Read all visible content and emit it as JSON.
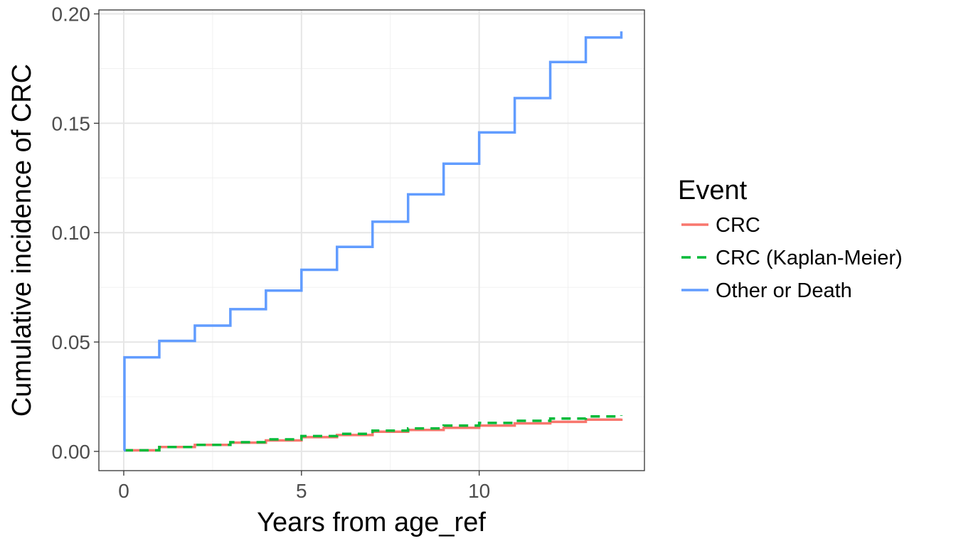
{
  "chart_data": {
    "type": "line",
    "step": true,
    "xlabel": "Years from age_ref",
    "ylabel": "Cumulative incidence of CRC",
    "xlim": [
      -0.7,
      14.65
    ],
    "ylim": [
      -0.0088,
      0.2018
    ],
    "x_ticks": [
      0,
      5,
      10
    ],
    "x_tick_labels": [
      "0",
      "5",
      "10"
    ],
    "y_ticks": [
      0,
      0.05,
      0.1,
      0.15,
      0.2
    ],
    "y_tick_labels": [
      "0.00",
      "0.05",
      "0.10",
      "0.15",
      "0.20"
    ],
    "grid": true,
    "legend": {
      "title": "Event",
      "position": "right"
    },
    "series": [
      {
        "name": "CRC",
        "color": "#F8766D",
        "style": "solid",
        "x": [
          0,
          1,
          2,
          3,
          4,
          5,
          6,
          7,
          8,
          9,
          10,
          11,
          12,
          13,
          14
        ],
        "y": [
          0.0005,
          0.002,
          0.003,
          0.004,
          0.005,
          0.0065,
          0.0075,
          0.009,
          0.0098,
          0.0108,
          0.0118,
          0.0128,
          0.0135,
          0.0145,
          0.015
        ]
      },
      {
        "name": "CRC (Kaplan-Meier)",
        "color": "#00BA38",
        "style": "dashed",
        "x": [
          0,
          1,
          2,
          3,
          4,
          5,
          6,
          7,
          8,
          9,
          10,
          11,
          12,
          13,
          14
        ],
        "y": [
          0.0005,
          0.002,
          0.003,
          0.0042,
          0.0055,
          0.007,
          0.008,
          0.0095,
          0.0105,
          0.0118,
          0.013,
          0.014,
          0.015,
          0.016,
          0.0165
        ]
      },
      {
        "name": "Other or Death",
        "color": "#619CFF",
        "style": "solid",
        "x": [
          0,
          0.02,
          1,
          2,
          3,
          4,
          5,
          6,
          7,
          8,
          9,
          10,
          11,
          12,
          13,
          14
        ],
        "y": [
          0.0005,
          0.043,
          0.0505,
          0.0575,
          0.065,
          0.0735,
          0.083,
          0.0935,
          0.105,
          0.1175,
          0.1315,
          0.1458,
          0.1615,
          0.178,
          0.1892,
          0.192
        ]
      }
    ]
  }
}
